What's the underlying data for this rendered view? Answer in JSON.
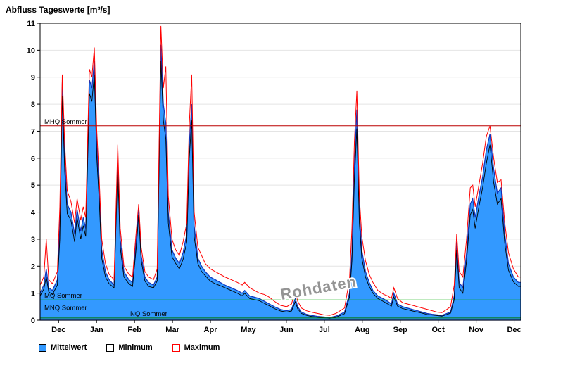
{
  "title": "Abfluss Tageswerte [m³/s]",
  "watermark": "Rohdaten",
  "colors": {
    "mean_fill": "#3399FF",
    "mean_stroke": "#1133BB",
    "min_line": "#000000",
    "max_line": "#FF0000",
    "grid": "#E4E4E4",
    "mhq_line": "#BB0000",
    "mq_line": "#00AA00"
  },
  "legend": [
    {
      "label": "Mittelwert"
    },
    {
      "label": "Minimum"
    },
    {
      "label": "Maximum"
    }
  ],
  "reference_lines": [
    {
      "label": "MHQ Sommer",
      "value": 7.2,
      "color": "#BB0000",
      "label_offset": 6
    },
    {
      "label": "MQ Sommer",
      "value": 0.75,
      "color": "#00AA00",
      "label_offset": 6
    },
    {
      "label": "MNQ Sommer",
      "value": 0.3,
      "color": "#007700",
      "label_offset": 6
    },
    {
      "label": "NQ Sommer",
      "value": 0.08,
      "color": "#007700",
      "label_offset": 128
    }
  ],
  "chart_data": {
    "type": "area",
    "title": "Abfluss Tageswerte [m³/s]",
    "xlabel": "",
    "ylabel": "",
    "ylim": [
      0,
      11
    ],
    "y_ticks": [
      0,
      1,
      2,
      3,
      4,
      5,
      6,
      7,
      8,
      9,
      10,
      11
    ],
    "grid": "horizontal",
    "legend_position": "bottom-left",
    "x_unit": "day-of-water-year (Dec through Dec)",
    "x_ticks": [
      "Dec",
      "Jan",
      "Feb",
      "Mar",
      "Apr",
      "May",
      "Jun",
      "Jul",
      "Aug",
      "Sep",
      "Oct",
      "Nov",
      "Dec"
    ],
    "x": [
      0,
      3,
      5,
      7,
      10,
      14,
      16,
      18,
      20,
      22,
      25,
      28,
      30,
      33,
      35,
      37,
      40,
      42,
      44,
      46,
      48,
      50,
      53,
      56,
      60,
      63,
      65,
      68,
      72,
      75,
      78,
      80,
      82,
      85,
      88,
      92,
      95,
      98,
      100,
      102,
      104,
      107,
      110,
      113,
      116,
      119,
      121,
      123,
      125,
      128,
      131,
      134,
      138,
      142,
      146,
      150,
      155,
      160,
      164,
      166,
      170,
      174,
      178,
      182,
      186,
      190,
      195,
      200,
      204,
      207,
      209,
      212,
      216,
      220,
      225,
      230,
      235,
      240,
      247,
      251,
      253,
      255,
      257,
      259,
      261,
      264,
      267,
      270,
      274,
      279,
      282,
      285,
      287,
      290,
      294,
      298,
      302,
      306,
      310,
      314,
      318,
      322,
      326,
      330,
      333,
      336,
      338,
      340,
      343,
      346,
      349,
      351,
      353,
      356,
      359,
      362,
      365,
      368,
      371,
      374,
      377,
      380,
      384,
      388,
      390
    ],
    "series": [
      {
        "name": "Mittelwert",
        "values": [
          1.0,
          1.3,
          1.9,
          1.2,
          1.1,
          1.5,
          3.5,
          8.8,
          6.0,
          4.3,
          4.0,
          3.2,
          4.1,
          3.3,
          3.8,
          3.4,
          8.9,
          8.6,
          9.6,
          6.5,
          4.8,
          2.6,
          1.8,
          1.5,
          1.3,
          6.1,
          3.0,
          1.8,
          1.5,
          1.4,
          3.0,
          4.2,
          2.4,
          1.6,
          1.4,
          1.3,
          1.6,
          10.2,
          8.0,
          7.3,
          4.0,
          2.6,
          2.3,
          2.1,
          2.5,
          3.2,
          6.5,
          8.0,
          3.5,
          2.3,
          2.0,
          1.8,
          1.6,
          1.5,
          1.4,
          1.3,
          1.2,
          1.1,
          1.0,
          1.1,
          0.9,
          0.85,
          0.8,
          0.7,
          0.6,
          0.5,
          0.4,
          0.35,
          0.4,
          0.8,
          0.5,
          0.3,
          0.22,
          0.18,
          0.14,
          0.12,
          0.1,
          0.15,
          0.3,
          1.0,
          2.5,
          5.8,
          7.8,
          4.0,
          2.6,
          1.8,
          1.4,
          1.1,
          0.9,
          0.78,
          0.7,
          0.6,
          1.0,
          0.6,
          0.5,
          0.45,
          0.4,
          0.35,
          0.3,
          0.25,
          0.22,
          0.2,
          0.18,
          0.25,
          0.3,
          0.9,
          2.9,
          1.4,
          1.2,
          2.5,
          4.3,
          4.5,
          3.8,
          4.6,
          5.3,
          6.3,
          6.9,
          5.6,
          4.7,
          4.9,
          3.2,
          2.1,
          1.6,
          1.4,
          1.4
        ]
      },
      {
        "name": "Minimum",
        "values": [
          0.9,
          1.15,
          1.6,
          1.05,
          0.95,
          1.3,
          3.0,
          8.3,
          5.5,
          3.95,
          3.7,
          2.9,
          3.8,
          3.0,
          3.5,
          3.1,
          8.4,
          8.1,
          9.1,
          6.0,
          4.4,
          2.3,
          1.6,
          1.35,
          1.2,
          5.6,
          2.7,
          1.6,
          1.35,
          1.25,
          2.7,
          3.9,
          2.2,
          1.45,
          1.25,
          1.2,
          1.45,
          9.6,
          7.4,
          6.7,
          3.6,
          2.35,
          2.1,
          1.9,
          2.25,
          2.9,
          6.0,
          7.4,
          3.1,
          2.1,
          1.8,
          1.65,
          1.45,
          1.35,
          1.28,
          1.2,
          1.1,
          1.0,
          0.9,
          1.0,
          0.8,
          0.76,
          0.72,
          0.62,
          0.53,
          0.43,
          0.34,
          0.3,
          0.34,
          0.68,
          0.42,
          0.25,
          0.18,
          0.14,
          0.11,
          0.09,
          0.07,
          0.11,
          0.24,
          0.85,
          2.2,
          5.2,
          7.1,
          3.6,
          2.3,
          1.6,
          1.25,
          1.0,
          0.8,
          0.68,
          0.6,
          0.52,
          0.86,
          0.52,
          0.43,
          0.39,
          0.34,
          0.3,
          0.26,
          0.21,
          0.19,
          0.17,
          0.15,
          0.21,
          0.26,
          0.76,
          2.6,
          1.2,
          1.0,
          2.2,
          3.9,
          4.1,
          3.4,
          4.2,
          4.9,
          5.8,
          6.5,
          5.1,
          4.3,
          4.5,
          2.85,
          1.85,
          1.42,
          1.25,
          1.25
        ]
      },
      {
        "name": "Maximum",
        "values": [
          1.3,
          1.6,
          3.0,
          1.5,
          1.35,
          1.8,
          4.2,
          9.1,
          6.5,
          4.8,
          4.4,
          3.6,
          4.5,
          3.7,
          4.2,
          3.8,
          9.3,
          9.0,
          10.1,
          7.0,
          5.2,
          3.0,
          2.1,
          1.7,
          1.5,
          6.5,
          3.4,
          2.0,
          1.7,
          1.6,
          3.3,
          4.3,
          2.7,
          1.8,
          1.6,
          1.5,
          1.9,
          10.9,
          8.6,
          9.4,
          4.6,
          3.0,
          2.6,
          2.4,
          2.9,
          3.6,
          7.2,
          9.1,
          4.0,
          2.7,
          2.4,
          2.1,
          1.9,
          1.8,
          1.7,
          1.6,
          1.5,
          1.4,
          1.3,
          1.4,
          1.2,
          1.1,
          1.0,
          0.95,
          0.85,
          0.7,
          0.55,
          0.5,
          0.6,
          1.1,
          0.7,
          0.45,
          0.35,
          0.3,
          0.25,
          0.2,
          0.18,
          0.25,
          0.45,
          1.5,
          3.4,
          6.6,
          8.5,
          4.6,
          3.1,
          2.2,
          1.7,
          1.4,
          1.1,
          0.95,
          0.9,
          0.8,
          1.2,
          0.8,
          0.65,
          0.6,
          0.55,
          0.5,
          0.45,
          0.4,
          0.35,
          0.3,
          0.28,
          0.4,
          0.5,
          1.3,
          3.2,
          1.8,
          1.6,
          3.0,
          4.9,
          5.0,
          4.2,
          5.0,
          5.8,
          6.8,
          7.2,
          6.0,
          5.1,
          5.2,
          3.6,
          2.5,
          1.9,
          1.6,
          1.6
        ]
      }
    ]
  }
}
